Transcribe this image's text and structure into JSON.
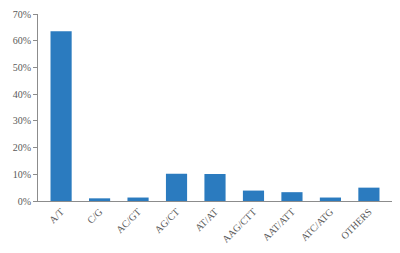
{
  "chart_data": {
    "type": "bar",
    "categories": [
      "A/T",
      "C/G",
      "AC/GT",
      "AG/CT",
      "AT/AT",
      "AAG/CTT",
      "AAT/ATT",
      "ATC/ATG",
      "OTHERS"
    ],
    "values": [
      63.5,
      1.0,
      1.3,
      10.2,
      10.1,
      3.9,
      3.3,
      1.3,
      5.0
    ],
    "color": "#2b7bbf",
    "ylim": [
      0,
      70
    ],
    "yticks": [
      {
        "value": 0,
        "label": "0%"
      },
      {
        "value": 10,
        "label": "10%"
      },
      {
        "value": 20,
        "label": "20%"
      },
      {
        "value": 30,
        "label": "30%"
      },
      {
        "value": 40,
        "label": "40%"
      },
      {
        "value": 50,
        "label": "50%"
      },
      {
        "value": 60,
        "label": "60%"
      },
      {
        "value": 70,
        "label": "70%"
      }
    ],
    "grid": false
  }
}
